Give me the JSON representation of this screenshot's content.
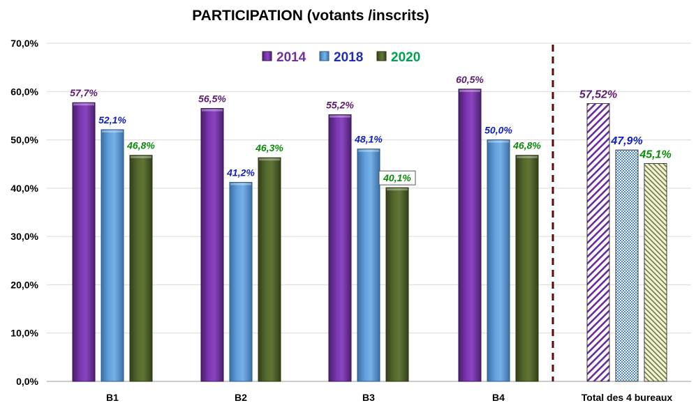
{
  "chart_data": {
    "type": "bar",
    "title": "PARTICIPATION (votants /inscrits)",
    "categories": [
      "B1",
      "B2",
      "B3",
      "B4",
      "Total des 4 bureaux"
    ],
    "series": [
      {
        "name": "2014",
        "color": "#7030A0",
        "label_color": "#5B1B6F",
        "values": [
          57.7,
          56.5,
          55.2,
          60.5,
          57.52
        ],
        "labels": [
          "57,7%",
          "56,5%",
          "55,2%",
          "60,5%",
          "57,52%"
        ]
      },
      {
        "name": "2018",
        "color": "#5B9BD5",
        "label_color": "#1020C0",
        "values": [
          52.1,
          41.2,
          48.1,
          50.0,
          47.9
        ],
        "labels": [
          "52,1%",
          "41,2%",
          "48,1%",
          "50,0%",
          "47,9%"
        ]
      },
      {
        "name": "2020",
        "color": "#4F6228",
        "label_color": "#0A8A0A",
        "values": [
          46.8,
          46.3,
          40.1,
          46.8,
          45.1
        ],
        "labels": [
          "46,8%",
          "46,3%",
          "40,1%",
          "46,8%",
          "45,1%"
        ]
      }
    ],
    "ylim": [
      0,
      70
    ],
    "yticks": [
      "0,0%",
      "10,0%",
      "20,0%",
      "30,0%",
      "40,0%",
      "50,0%",
      "60,0%",
      "70,0%"
    ],
    "legend_position": "top-center",
    "legend_colors": [
      "#7030A0",
      "#1F2FB0",
      "#00A050"
    ],
    "grid": true,
    "separator": "dashed vertical line before total",
    "total_bars_pattern": "hatched"
  }
}
